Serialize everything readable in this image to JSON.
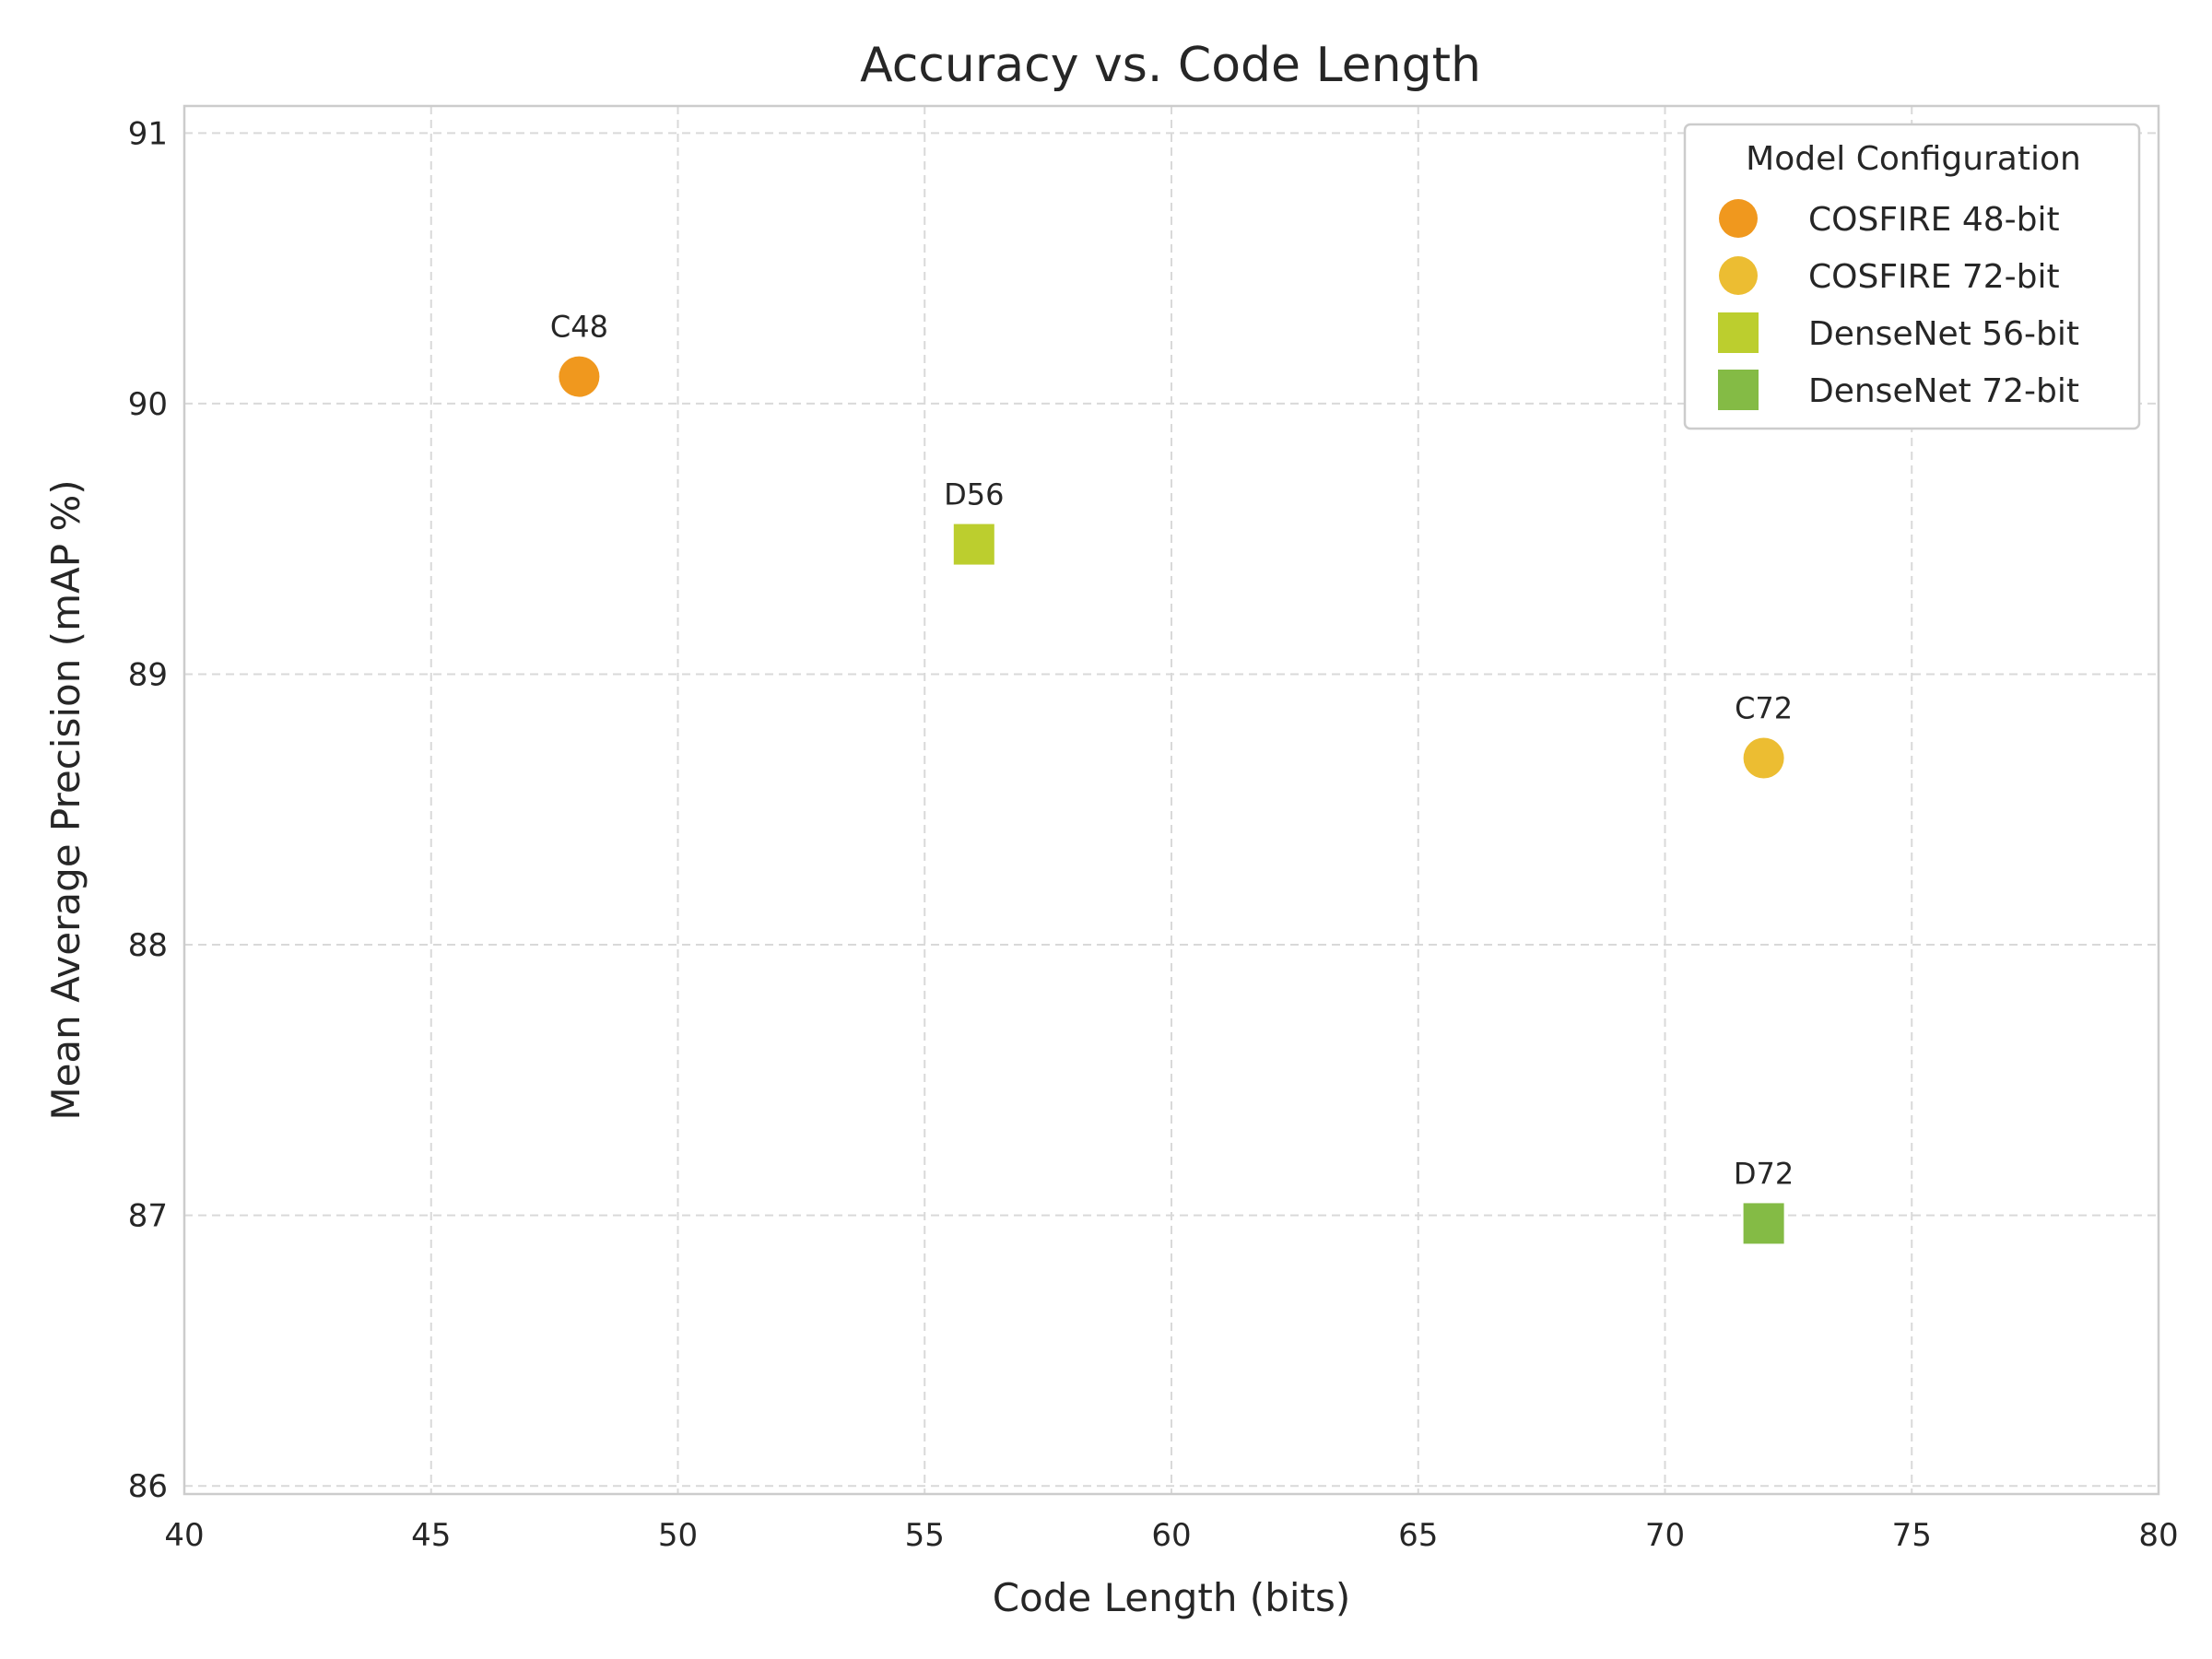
{
  "chart_data": {
    "type": "scatter",
    "title": "Accuracy vs. Code Length",
    "xlabel": "Code Length (bits)",
    "ylabel": "Mean Average Precision (mAP %)",
    "xlim": [
      40,
      80
    ],
    "ylim": [
      85.97,
      91.1
    ],
    "xticks": [
      40,
      45,
      50,
      55,
      60,
      65,
      70,
      75,
      80
    ],
    "yticks": [
      86,
      87,
      88,
      89,
      90,
      91
    ],
    "grid": true,
    "legend": {
      "title": "Model Configuration",
      "placement": "top-right"
    },
    "series": [
      {
        "name": "COSFIRE 48-bit",
        "marker": "circle",
        "color": "#f0981e",
        "label": "C48",
        "x": 48,
        "y": 90.1
      },
      {
        "name": "COSFIRE 72-bit",
        "marker": "circle",
        "color": "#ecbd32",
        "label": "C72",
        "x": 72,
        "y": 88.69
      },
      {
        "name": "DenseNet 56-bit",
        "marker": "square",
        "color": "#bcce2e",
        "label": "D56",
        "x": 56,
        "y": 89.48
      },
      {
        "name": "DenseNet 72-bit",
        "marker": "square",
        "color": "#84bb45",
        "label": "D72",
        "x": 72,
        "y": 86.97
      }
    ]
  }
}
